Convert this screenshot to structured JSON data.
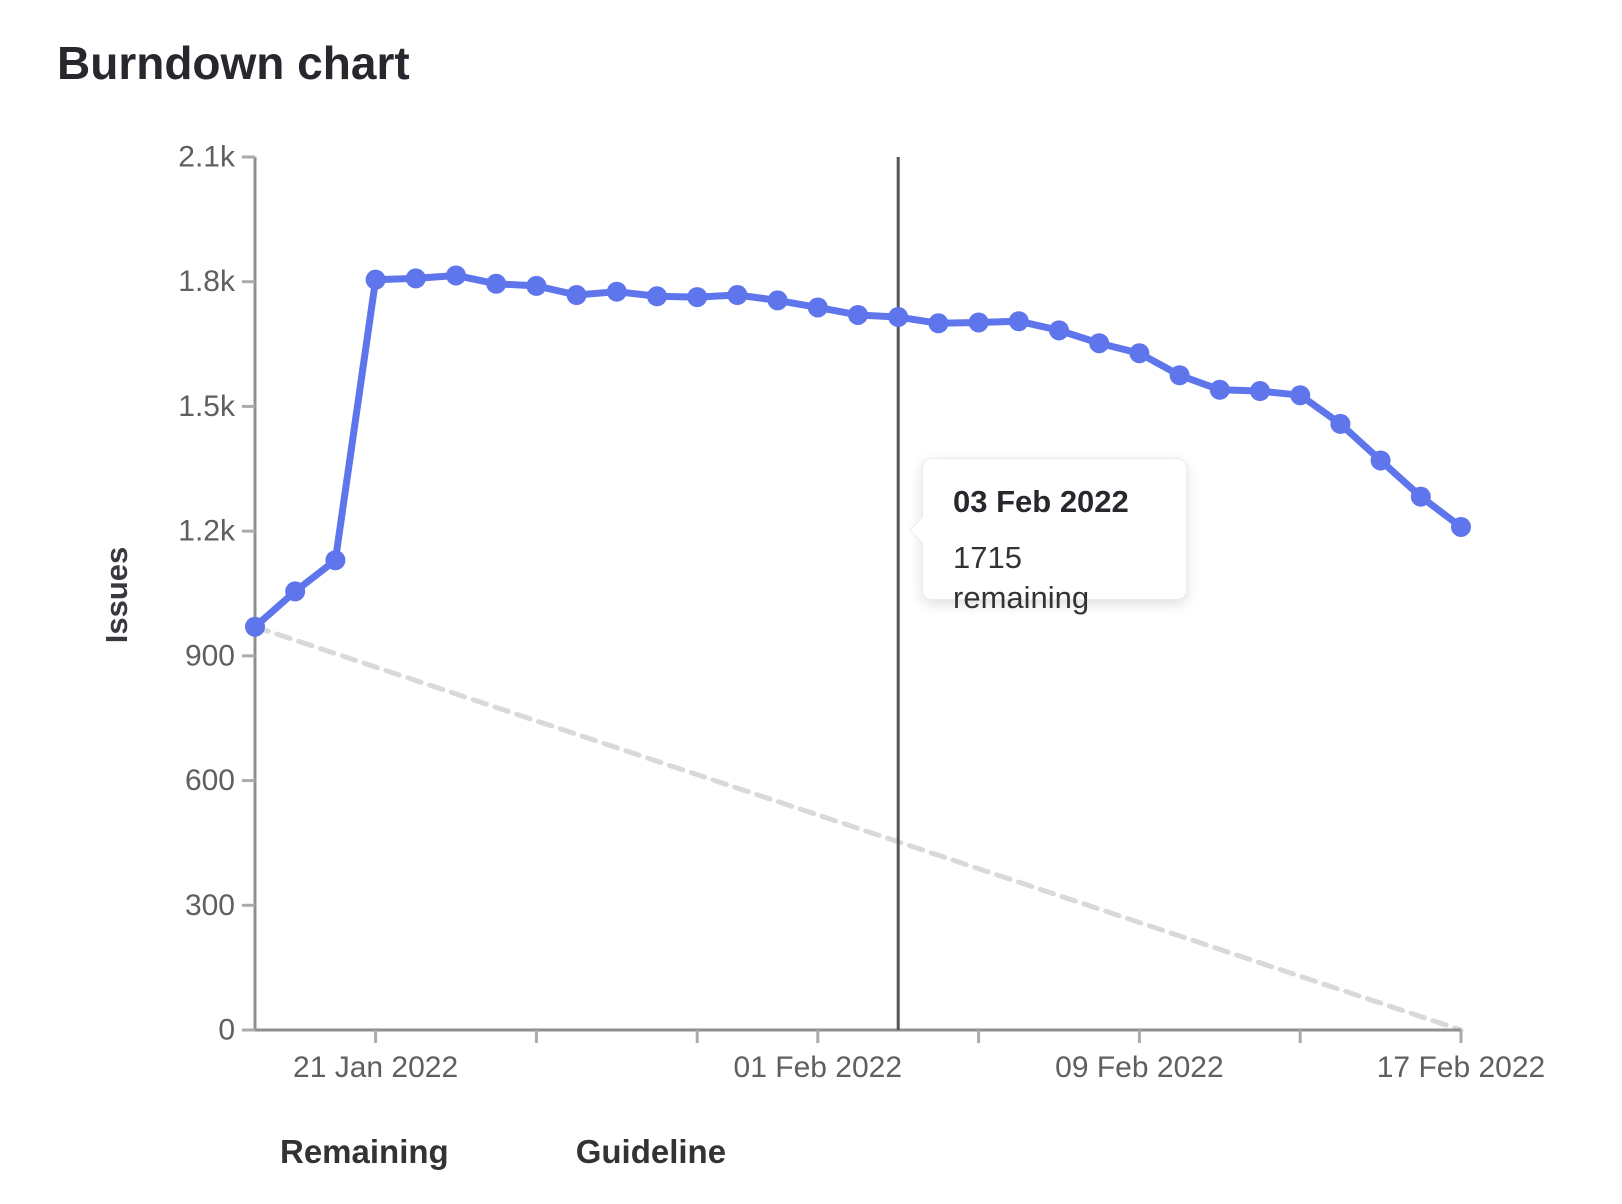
{
  "page_title": "Burndown chart",
  "chart_data": {
    "type": "line",
    "title": "Burndown chart",
    "xlabel": "",
    "ylabel": "Issues",
    "ylim": [
      0,
      2100
    ],
    "grid": false,
    "legend_position": "bottom-left",
    "x": [
      "18 Jan 2022",
      "19 Jan 2022",
      "20 Jan 2022",
      "21 Jan 2022",
      "22 Jan 2022",
      "23 Jan 2022",
      "24 Jan 2022",
      "25 Jan 2022",
      "26 Jan 2022",
      "27 Jan 2022",
      "28 Jan 2022",
      "29 Jan 2022",
      "30 Jan 2022",
      "31 Jan 2022",
      "01 Feb 2022",
      "02 Feb 2022",
      "03 Feb 2022",
      "04 Feb 2022",
      "05 Feb 2022",
      "06 Feb 2022",
      "07 Feb 2022",
      "08 Feb 2022",
      "09 Feb 2022",
      "10 Feb 2022",
      "11 Feb 2022",
      "12 Feb 2022",
      "13 Feb 2022",
      "14 Feb 2022",
      "15 Feb 2022",
      "16 Feb 2022",
      "17 Feb 2022"
    ],
    "series": [
      {
        "name": "Remaining",
        "style": "solid",
        "color": "#5e75ec",
        "values": [
          970,
          1055,
          1130,
          1805,
          1808,
          1815,
          1795,
          1790,
          1768,
          1776,
          1765,
          1763,
          1768,
          1755,
          1738,
          1720,
          1715,
          1700,
          1702,
          1705,
          1683,
          1652,
          1628,
          1575,
          1540,
          1537,
          1527,
          1458,
          1370,
          1283,
          1210
        ]
      },
      {
        "name": "Guideline",
        "style": "dashed",
        "color": "#d9d9d9",
        "points": [
          {
            "x": "18 Jan 2022",
            "value": 970
          },
          {
            "x": "17 Feb 2022",
            "value": 0
          }
        ]
      }
    ],
    "y_ticks": [
      {
        "value": 0,
        "label": "0"
      },
      {
        "value": 300,
        "label": "300"
      },
      {
        "value": 600,
        "label": "600"
      },
      {
        "value": 900,
        "label": "900"
      },
      {
        "value": 1200,
        "label": "1.2k"
      },
      {
        "value": 1500,
        "label": "1.5k"
      },
      {
        "value": 1800,
        "label": "1.8k"
      },
      {
        "value": 2100,
        "label": "2.1k"
      }
    ],
    "x_minor_tick_day_indices": [
      3,
      7,
      11,
      14,
      18,
      22,
      26,
      30
    ],
    "x_tick_labels": [
      {
        "day_index": 3,
        "label": "21 Jan 2022"
      },
      {
        "day_index": 14,
        "label": "01 Feb 2022"
      },
      {
        "day_index": 22,
        "label": "09 Feb 2022"
      },
      {
        "day_index": 30,
        "label": "17 Feb 2022"
      }
    ],
    "today_line_day_index": 16
  },
  "tooltip": {
    "date": "03 Feb 2022",
    "value": "1715 remaining"
  },
  "legend": {
    "remaining_label": "Remaining",
    "guideline_label": "Guideline"
  },
  "colors": {
    "series_blue": "#5e75ec",
    "guideline_gray": "#d9d9d9",
    "axis_line": "#8f8f8f",
    "tick_mark": "#ababab",
    "tick_text": "#5f5f5f",
    "today_line": "#545454",
    "title_text": "#28272d"
  }
}
